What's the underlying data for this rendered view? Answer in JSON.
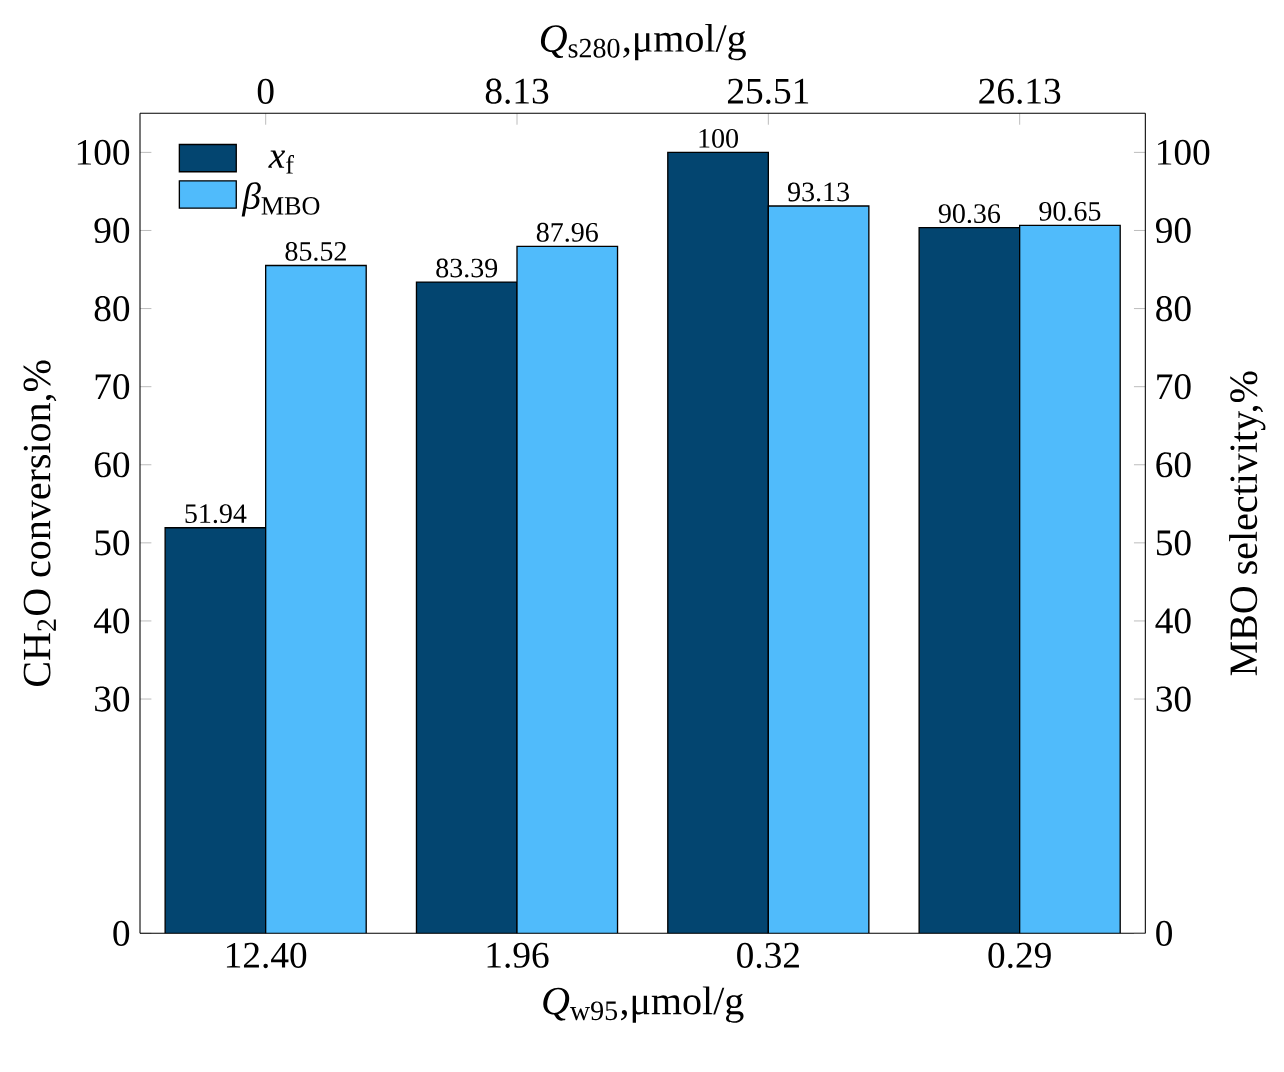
{
  "chart_data": {
    "type": "bar",
    "categories": [
      "12.40",
      "1.96",
      "0.32",
      "0.29"
    ],
    "xlabel": "*Q*$_{w95}$,μmol/g",
    "x2label": "*Q*$_{s280}$,μmol/g",
    "annotations": [
      "0",
      "8.13",
      "25.51",
      "26.13"
    ],
    "ylabel": "CH$_{2}$O conversion,%",
    "y2label": "MBO selectivity,%",
    "ylim": [
      0,
      105
    ],
    "yticks": [
      0,
      30,
      40,
      50,
      60,
      70,
      80,
      90,
      100
    ],
    "y2lim": [
      0,
      105
    ],
    "y2ticks": [
      0,
      30,
      40,
      50,
      60,
      70,
      80,
      90,
      100
    ],
    "series": [
      {
        "name": "*x*$_{f}$",
        "color": "#034570",
        "values": [
          51.94,
          83.39,
          100,
          90.36
        ]
      },
      {
        "name": "*β*$_{MBO}$",
        "color": "#50bbfb",
        "values": [
          85.52,
          87.96,
          93.13,
          90.65
        ]
      }
    ],
    "data_labels": true,
    "legend": "top left",
    "grid": false
  }
}
